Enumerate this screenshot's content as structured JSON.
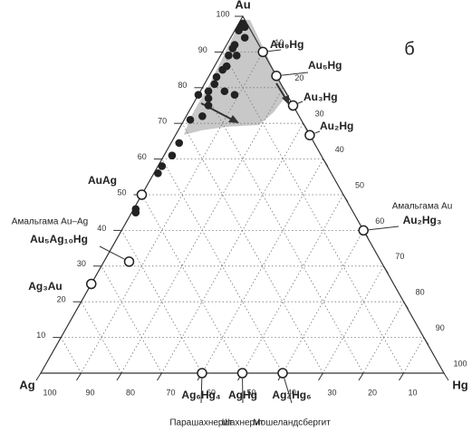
{
  "chart_data": {
    "type": "ternary",
    "panel_label": "б",
    "vertices": {
      "top": "Au",
      "left": "Ag",
      "right": "Hg"
    },
    "au_ticks": [
      10,
      20,
      30,
      40,
      50,
      60,
      70,
      80,
      90,
      100
    ],
    "hg_ticks": [
      10,
      20,
      30,
      40,
      50,
      60,
      70,
      80,
      90,
      100
    ],
    "ag_ticks": [
      10,
      20,
      30,
      40,
      50,
      60,
      70,
      80,
      90,
      100
    ],
    "grid": true,
    "points": {
      "color": "#222222",
      "au": [
        97,
        98,
        96,
        97,
        94,
        92,
        91,
        89,
        89,
        86,
        85,
        83,
        81,
        79,
        78,
        79,
        78,
        77,
        75,
        72,
        71,
        64.5,
        61,
        58,
        56,
        46,
        45
      ],
      "hg": [
        1,
        1,
        1,
        2,
        3.5,
        2,
        2,
        2,
        4,
        3,
        2.5,
        2,
        2.5,
        2,
        0,
        6,
        9,
        3,
        4,
        4,
        1.5,
        2,
        2,
        1,
        1,
        0.5,
        1
      ]
    },
    "compounds": [
      {
        "name": "Au₉Hg",
        "au": 90,
        "hg": 10
      },
      {
        "name": "Au₅Hg",
        "au": 83.3,
        "hg": 16.7
      },
      {
        "name": "Au₃Hg",
        "au": 75,
        "hg": 25
      },
      {
        "name": "Au₂Hg",
        "au": 66.7,
        "hg": 33.3
      },
      {
        "name": "Au₂Hg₃",
        "au": 40,
        "hg": 60,
        "note": "Амальгама Au"
      },
      {
        "name": "AuAg",
        "au": 50,
        "hg": 0
      },
      {
        "name": "Au₅Ag₁₀Hg",
        "au": 31.25,
        "hg": 6.25,
        "note": "Амальгама Au–Ag"
      },
      {
        "name": "Ag₃Au",
        "au": 25,
        "hg": 0
      },
      {
        "name": "Ag₆Hg₄",
        "au": 0,
        "hg": 40,
        "note": "Парашахнерит"
      },
      {
        "name": "AgHg",
        "au": 0,
        "hg": 50,
        "note": "Шахнерит"
      },
      {
        "name": "Ag₄Hg₆",
        "au": 0,
        "hg": 60,
        "note": "Мошеландсбергит"
      }
    ]
  }
}
